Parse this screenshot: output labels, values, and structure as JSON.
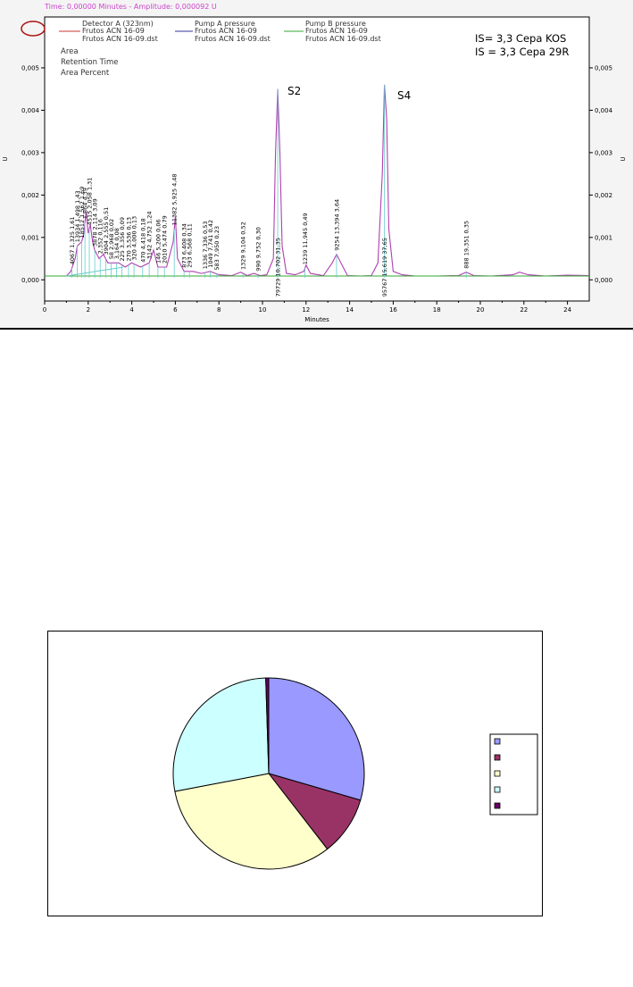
{
  "header": {
    "status_line": "Time: 0,00000 Minutes - Amplitude: 0,000092 U"
  },
  "legend": {
    "items": [
      {
        "name": "Detector A (323nm)",
        "file1": "Frutos ACN 16-09",
        "file2": "Frutos ACN 16-09.dst",
        "color": "#cc3333"
      },
      {
        "name": "Pump A pressure",
        "file1": "Frutos ACN 16-09",
        "file2": "Frutos ACN 16-09.dst",
        "color": "#333399"
      },
      {
        "name": "Pump B pressure",
        "file1": "Frutos ACN 16-09",
        "file2": "Frutos ACN 16-09.dst",
        "color": "#33aa33"
      }
    ],
    "modes": [
      "Area",
      "Retention Time",
      "Area Percent"
    ]
  },
  "annotation": {
    "line1": "IS= 3,3 Cepa KOS",
    "line2": "IS = 3,3 Cepa 29R"
  },
  "peak_labels": [
    "S2",
    "S4"
  ],
  "chart_data": [
    {
      "type": "line",
      "title": "",
      "xlabel": "Minutes",
      "ylabel": "U",
      "xlim": [
        0,
        25
      ],
      "ylim": [
        -0.0005,
        0.0062
      ],
      "x_ticks": [
        0,
        2,
        4,
        6,
        8,
        10,
        12,
        14,
        16,
        18,
        20,
        22,
        24
      ],
      "y_ticks_left": [
        "0,000",
        "0,001",
        "0,002",
        "0,003",
        "0,004",
        "0,005"
      ],
      "y_ticks_right": [
        "0,000",
        "0,001",
        "0,002",
        "0,003",
        "0,004",
        "0,005"
      ],
      "series": [
        {
          "name": "Detector A (323nm)",
          "x": [
            0,
            1.0,
            1.2,
            1.4,
            1.5,
            1.7,
            1.8,
            1.9,
            2.0,
            2.1,
            2.2,
            2.3,
            2.5,
            2.7,
            2.9,
            3.1,
            3.4,
            3.7,
            4.0,
            4.4,
            4.8,
            5.0,
            5.2,
            5.6,
            5.9,
            6.0,
            6.1,
            6.4,
            6.8,
            7.2,
            7.6,
            8.0,
            8.6,
            9.0,
            9.3,
            9.6,
            9.9,
            10.2,
            10.5,
            10.6,
            10.7,
            10.8,
            10.9,
            11.1,
            11.5,
            11.9,
            12.0,
            12.2,
            12.8,
            13.2,
            13.4,
            13.6,
            13.9,
            14.5,
            15.0,
            15.3,
            15.5,
            15.6,
            15.7,
            15.8,
            16.0,
            16.4,
            17.0,
            18.0,
            19.0,
            19.35,
            19.7,
            20.5,
            21.5,
            21.8,
            22.2,
            23.0,
            24.0,
            25.0
          ],
          "y": [
            9e-05,
            9e-05,
            0.0002,
            0.0005,
            0.0008,
            0.0009,
            0.0011,
            0.0016,
            0.0011,
            0.0013,
            0.0009,
            0.0007,
            0.0005,
            0.0006,
            0.0004,
            0.0004,
            0.0004,
            0.0003,
            0.0004,
            0.0003,
            0.0004,
            0.0007,
            0.0003,
            0.0003,
            0.0009,
            0.0015,
            0.0005,
            0.0002,
            0.0002,
            0.00015,
            0.0002,
            0.00012,
            0.0001,
            0.00018,
            0.0001,
            0.00015,
            0.0001,
            0.00012,
            0.0005,
            0.003,
            0.0045,
            0.003,
            0.0008,
            0.00015,
            0.00012,
            0.0002,
            0.00035,
            0.00015,
            0.0001,
            0.0004,
            0.0006,
            0.0004,
            0.0001,
            9e-05,
            0.0001,
            0.0004,
            0.0025,
            0.0046,
            0.0038,
            0.0012,
            0.0002,
            0.00012,
            9e-05,
            9e-05,
            0.0001,
            0.00018,
            0.0001,
            9e-05,
            0.00012,
            0.00018,
            0.00012,
            9e-05,
            0.00011,
            0.0001
          ],
          "color": "#b040b0"
        },
        {
          "name": "Pump B pressure",
          "x": [
            0,
            25
          ],
          "y": [
            9e-05,
            9e-05
          ],
          "color": "#33aa33"
        }
      ],
      "peak_annotations": [
        {
          "x": 1.25,
          "lines": [
            "4067",
            "1,325",
            "1,61"
          ]
        },
        {
          "x": 1.5,
          "lines": [
            "13934",
            "1,498",
            "1,43"
          ]
        },
        {
          "x": 1.7,
          "lines": [
            "18512",
            "1,562",
            "1,69"
          ]
        },
        {
          "x": 1.85,
          "lines": [
            "1,864",
            "4,39"
          ]
        },
        {
          "x": 2.05,
          "lines": [
            "4515",
            "2,058",
            "1,31"
          ]
        },
        {
          "x": 2.3,
          "lines": [
            "3878",
            "2,114",
            "3,09"
          ]
        },
        {
          "x": 2.55,
          "lines": [
            "2,352",
            "0,116"
          ]
        },
        {
          "x": 2.8,
          "lines": [
            "3904",
            "2,555",
            "0,51"
          ]
        },
        {
          "x": 3.05,
          "lines": [
            "58",
            "2,968",
            "0,02"
          ]
        },
        {
          "x": 3.3,
          "lines": [
            "3,164",
            "0,08"
          ]
        },
        {
          "x": 3.55,
          "lines": [
            "225",
            "3,356",
            "0,09"
          ]
        },
        {
          "x": 3.85,
          "lines": [
            "270",
            "3,536",
            "0,13"
          ]
        },
        {
          "x": 4.1,
          "lines": [
            "320",
            "4,000",
            "0,13"
          ]
        },
        {
          "x": 4.5,
          "lines": [
            "470",
            "4,418",
            "0,18"
          ]
        },
        {
          "x": 4.8,
          "lines": [
            "3142",
            "4,752",
            "1,24"
          ]
        },
        {
          "x": 5.2,
          "lines": [
            "146",
            "5,200",
            "0,06"
          ]
        },
        {
          "x": 5.5,
          "lines": [
            "2010",
            "5,474",
            "0,79"
          ]
        },
        {
          "x": 5.95,
          "lines": [
            "11382",
            "5,925",
            "4,48"
          ]
        },
        {
          "x": 6.4,
          "lines": [
            "873",
            "6,408",
            "0,34"
          ]
        },
        {
          "x": 6.65,
          "lines": [
            "293",
            "6,568",
            "0,11"
          ]
        },
        {
          "x": 7.35,
          "lines": [
            "1336",
            "7,336",
            "0,53"
          ]
        },
        {
          "x": 7.6,
          "lines": [
            "1049",
            "7,741",
            "0,42"
          ]
        },
        {
          "x": 7.9,
          "lines": [
            "583",
            "7,950",
            "0,23"
          ]
        },
        {
          "x": 9.1,
          "lines": [
            "1329",
            "9,104",
            "0,52"
          ]
        },
        {
          "x": 9.8,
          "lines": [
            "990",
            "9,752",
            "0,30"
          ]
        },
        {
          "x": 10.7,
          "lines": [
            "79729",
            "10,702",
            "31,35"
          ]
        },
        {
          "x": 11.95,
          "lines": [
            "1239",
            "11,945",
            "0,49"
          ]
        },
        {
          "x": 13.4,
          "lines": [
            "9254",
            "13,394",
            "3,64"
          ]
        },
        {
          "x": 15.6,
          "lines": [
            "95767",
            "15,619",
            "37,65"
          ]
        },
        {
          "x": 19.35,
          "lines": [
            "888",
            "19,351",
            "0,35"
          ]
        }
      ]
    },
    {
      "type": "pie",
      "title": "",
      "slices": [
        {
          "value": 29.5,
          "color": "#9999ff",
          "label": ""
        },
        {
          "value": 10.0,
          "color": "#993366",
          "label": ""
        },
        {
          "value": 32.5,
          "color": "#ffffcc",
          "label": ""
        },
        {
          "value": 27.5,
          "color": "#ccffff",
          "label": ""
        },
        {
          "value": 0.5,
          "color": "#660066",
          "label": ""
        }
      ],
      "legend_position": "right"
    }
  ]
}
